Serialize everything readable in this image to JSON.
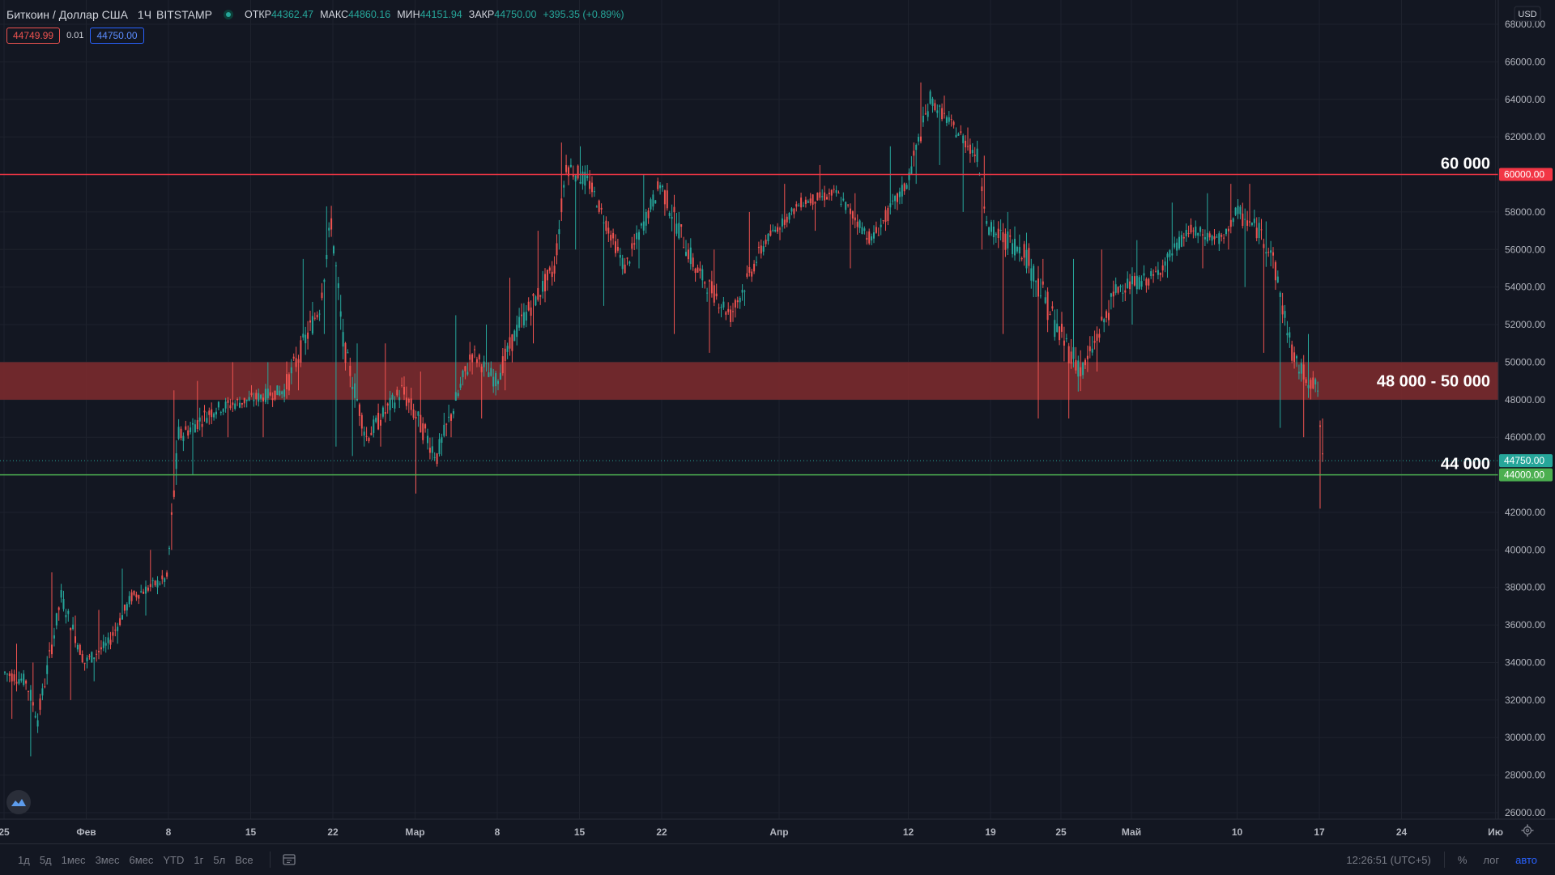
{
  "header": {
    "symbol": "Биткоин / Доллар США",
    "interval": "1Ч",
    "exchange": "BITSTAMP",
    "open_label": "ОТКР",
    "open_value": "44362.47",
    "high_label": "МАКС",
    "high_value": "44860.16",
    "low_label": "МИН",
    "low_value": "44151.94",
    "close_label": "ЗАКР",
    "close_value": "44750.00",
    "change": "+395.35 (+0.89%)",
    "sell_price": "44749.99",
    "spread": "0.01",
    "buy_price": "44750.00"
  },
  "colors": {
    "background": "#131722",
    "grid": "#1e222d",
    "up": "#26a69a",
    "down": "#ef5350",
    "resistance": "#f23645",
    "support": "#4caf50",
    "zone": "#7a2a2d",
    "axis_text": "#b2b5be",
    "accent_blue": "#2962ff"
  },
  "chart_data": {
    "type": "candlestick",
    "currency": "USD",
    "y_axis_ticks": [
      "26000.00",
      "28000.00",
      "30000.00",
      "32000.00",
      "34000.00",
      "36000.00",
      "38000.00",
      "40000.00",
      "42000.00",
      "44000.00",
      "46000.00",
      "48000.00",
      "50000.00",
      "52000.00",
      "54000.00",
      "56000.00",
      "58000.00",
      "60000.00",
      "62000.00",
      "64000.00",
      "66000.00",
      "68000.00"
    ],
    "ylim": [
      26000,
      68000
    ],
    "x_axis_ticks": [
      "25",
      "Фев",
      "8",
      "15",
      "22",
      "Мар",
      "8",
      "15",
      "22",
      "Апр",
      "12",
      "19",
      "25",
      "Май",
      "10",
      "17",
      "24",
      "Ию"
    ],
    "series": [
      {
        "name": "BTCUSD",
        "x": [
          "2021-01-25",
          "2021-01-27",
          "2021-01-28",
          "2021-01-30",
          "2021-02-01",
          "2021-02-03",
          "2021-02-05",
          "2021-02-08",
          "2021-02-09",
          "2021-02-12",
          "2021-02-15",
          "2021-02-18",
          "2021-02-21",
          "2021-02-22",
          "2021-02-23",
          "2021-02-25",
          "2021-02-28",
          "2021-03-03",
          "2021-03-06",
          "2021-03-08",
          "2021-03-10",
          "2021-03-13",
          "2021-03-14",
          "2021-03-16",
          "2021-03-19",
          "2021-03-22",
          "2021-03-25",
          "2021-03-28",
          "2021-03-31",
          "2021-04-03",
          "2021-04-06",
          "2021-04-09",
          "2021-04-12",
          "2021-04-14",
          "2021-04-16",
          "2021-04-18",
          "2021-04-19",
          "2021-04-22",
          "2021-04-25",
          "2021-04-27",
          "2021-04-30",
          "2021-05-03",
          "2021-05-06",
          "2021-05-09",
          "2021-05-10",
          "2021-05-12",
          "2021-05-13",
          "2021-05-15",
          "2021-05-17"
        ],
        "close": [
          33000,
          31000,
          37500,
          34000,
          35000,
          37500,
          38500,
          46000,
          47500,
          48000,
          48500,
          53000,
          57500,
          51000,
          46000,
          48500,
          45000,
          50500,
          49000,
          52000,
          55000,
          60500,
          59500,
          55000,
          59500,
          55000,
          52500,
          56500,
          58500,
          59000,
          56500,
          59500,
          64000,
          62500,
          61000,
          57000,
          56000,
          51500,
          49500,
          54000,
          54500,
          57000,
          56500,
          58000,
          57000,
          56000,
          50000,
          48500,
          44750
        ],
        "high": [
          35000,
          34000,
          38800,
          36500,
          36800,
          39000,
          40000,
          48500,
          49000,
          50000,
          50000,
          55500,
          58300,
          54500,
          51000,
          51000,
          49500,
          52500,
          52000,
          54500,
          57000,
          61700,
          61500,
          57500,
          60000,
          58000,
          56000,
          58000,
          59500,
          60500,
          59000,
          61500,
          64900,
          64200,
          62500,
          61000,
          58000,
          55500,
          55500,
          56000,
          56500,
          58500,
          59000,
          59500,
          59500,
          57500,
          53000,
          51500,
          47000
        ],
        "low": [
          31000,
          29000,
          33500,
          32000,
          33000,
          35000,
          36500,
          40000,
          44000,
          46000,
          46000,
          48500,
          51500,
          45500,
          45000,
          45500,
          43000,
          46000,
          47000,
          48500,
          51000,
          56000,
          56000,
          53000,
          55000,
          51500,
          50500,
          53000,
          56500,
          57000,
          55000,
          57000,
          59500,
          60500,
          58000,
          56000,
          51500,
          47000,
          47000,
          49500,
          52000,
          54500,
          55000,
          56000,
          54000,
          50500,
          46500,
          46000,
          42200
        ]
      }
    ],
    "levels": [
      {
        "label": "60 000",
        "price": 60000,
        "axis_label": "60000.00"
      },
      {
        "label": "44 000",
        "price": 44000,
        "axis_label": "44000.00"
      }
    ],
    "zone": {
      "label": "48 000 - 50 000",
      "from": 48000,
      "to": 50000
    },
    "last_price": {
      "price": 44750,
      "axis_label": "44750.00"
    }
  },
  "bottom": {
    "ranges": [
      "1д",
      "5д",
      "1мес",
      "3мес",
      "6мес",
      "YTD",
      "1г",
      "5л",
      "Все"
    ],
    "time": "12:26:51 (UTC+5)",
    "percent": "%",
    "log": "лог",
    "auto": "авто"
  }
}
